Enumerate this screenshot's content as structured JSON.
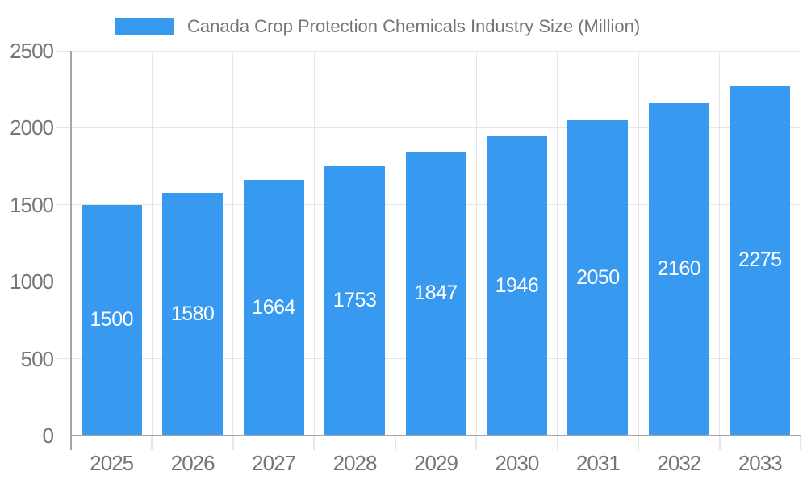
{
  "chart_data": {
    "type": "bar",
    "title": "Canada Crop Protection Chemicals Industry Size (Million)",
    "categories": [
      "2025",
      "2026",
      "2027",
      "2028",
      "2029",
      "2030",
      "2031",
      "2032",
      "2033"
    ],
    "values": [
      1500,
      1580,
      1664,
      1753,
      1847,
      1946,
      2050,
      2160,
      2275
    ],
    "bar_labels": [
      "1500",
      "1580",
      "1664",
      "1753",
      "1847",
      "1946",
      "2050",
      "2160",
      "2275"
    ],
    "xlabel": "",
    "ylabel": "",
    "ylim": [
      0,
      2500
    ],
    "ytick_step": 500,
    "ytick_labels": [
      "0",
      "500",
      "1000",
      "1500",
      "2000",
      "2500"
    ],
    "grid": true,
    "legend_position": "top",
    "colors": {
      "bar": "#3899F0",
      "grid": "#e6e6e6",
      "axis": "#a6a6a6",
      "label": "#757575",
      "bar_label": "#ffffff",
      "background": "#ffffff"
    }
  }
}
